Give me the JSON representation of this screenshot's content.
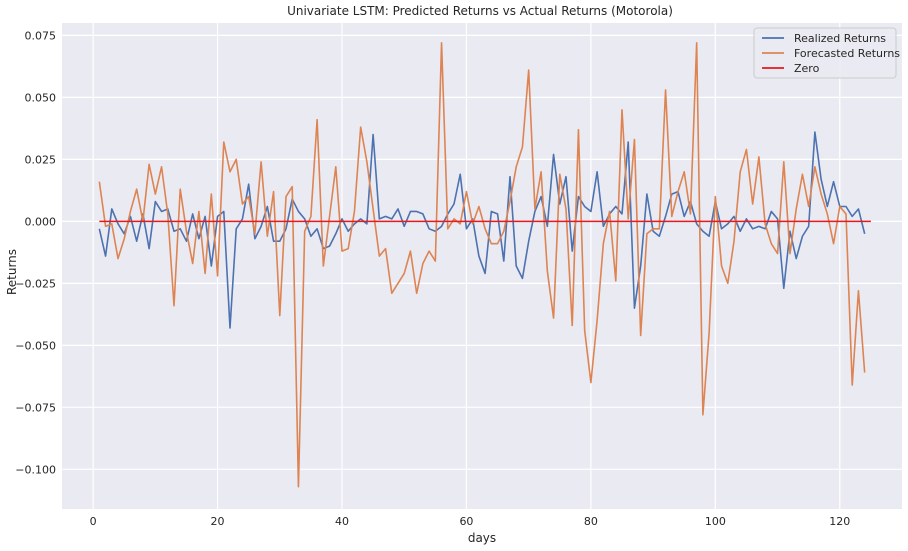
{
  "chart_data": {
    "type": "line",
    "title": "Univariate LSTM: Predicted Returns vs Actual Returns (Motorola)",
    "xlabel": "days",
    "ylabel": "Returns",
    "xlim": [
      -5,
      130
    ],
    "ylim": [
      -0.116,
      0.08
    ],
    "xticks": [
      0,
      20,
      40,
      60,
      80,
      100,
      120
    ],
    "yticks": [
      -0.1,
      -0.075,
      -0.05,
      -0.025,
      0.0,
      0.025,
      0.05,
      0.075
    ],
    "ytick_labels": [
      "−0.100",
      "−0.075",
      "−0.050",
      "−0.025",
      "0.000",
      "0.025",
      "0.050",
      "0.075"
    ],
    "xtick_labels": [
      "0",
      "20",
      "40",
      "60",
      "80",
      "100",
      "120"
    ],
    "grid": true,
    "legend_position": "top-right",
    "background_color": "#eaeaf2",
    "series": [
      {
        "name": "Realized Returns",
        "color": "#4c72b0",
        "x": [
          1,
          2,
          3,
          4,
          5,
          6,
          7,
          8,
          9,
          10,
          11,
          12,
          13,
          14,
          15,
          16,
          17,
          18,
          19,
          20,
          21,
          22,
          23,
          24,
          25,
          26,
          27,
          28,
          29,
          30,
          31,
          32,
          33,
          34,
          35,
          36,
          37,
          38,
          39,
          40,
          41,
          42,
          43,
          44,
          45,
          46,
          47,
          48,
          49,
          50,
          51,
          52,
          53,
          54,
          55,
          56,
          57,
          58,
          59,
          60,
          61,
          62,
          63,
          64,
          65,
          66,
          67,
          68,
          69,
          70,
          71,
          72,
          73,
          74,
          75,
          76,
          77,
          78,
          79,
          80,
          81,
          82,
          83,
          84,
          85,
          86,
          87,
          88,
          89,
          90,
          91,
          92,
          93,
          94,
          95,
          96,
          97,
          98,
          99,
          100,
          101,
          102,
          103,
          104,
          105,
          106,
          107,
          108,
          109,
          110,
          111,
          112,
          113,
          114,
          115,
          116,
          117,
          118,
          119,
          120,
          121,
          122,
          123,
          124
        ],
        "values": [
          -0.003,
          -0.014,
          0.005,
          -0.001,
          -0.005,
          0.002,
          -0.008,
          0.003,
          -0.011,
          0.008,
          0.004,
          0.005,
          -0.004,
          -0.003,
          -0.008,
          0.003,
          -0.007,
          0.002,
          -0.018,
          0.002,
          0.004,
          -0.043,
          -0.003,
          0.001,
          0.015,
          -0.007,
          -0.002,
          0.006,
          -0.008,
          -0.008,
          -0.003,
          0.009,
          0.004,
          0.001,
          -0.006,
          -0.003,
          -0.011,
          -0.01,
          -0.005,
          0.001,
          -0.004,
          -0.001,
          0.001,
          -0.001,
          0.035,
          0.001,
          0.002,
          0.001,
          0.005,
          -0.002,
          0.004,
          0.004,
          0.003,
          -0.003,
          -0.004,
          -0.002,
          0.003,
          0.007,
          0.019,
          -0.003,
          0.001,
          -0.014,
          -0.021,
          0.004,
          0.003,
          -0.016,
          0.018,
          -0.018,
          -0.023,
          -0.008,
          0.004,
          0.01,
          -0.002,
          0.027,
          0.007,
          0.018,
          -0.012,
          0.01,
          0.006,
          0.004,
          0.02,
          -0.002,
          0.003,
          0.006,
          0.003,
          0.032,
          -0.035,
          -0.018,
          0.011,
          -0.004,
          -0.006,
          0.002,
          0.011,
          0.012,
          0.002,
          0.008,
          -0.001,
          -0.004,
          -0.006,
          0.008,
          -0.003,
          -0.001,
          0.002,
          -0.004,
          0.001,
          -0.003,
          -0.002,
          -0.003,
          0.004,
          0.001,
          -0.027,
          -0.004,
          -0.015,
          -0.006,
          -0.002,
          0.036,
          0.017,
          0.006,
          0.016,
          0.006,
          0.006,
          0.002,
          0.005,
          -0.005
        ]
      },
      {
        "name": "Forecasted Returns",
        "color": "#dd8452",
        "x": [
          1,
          2,
          3,
          4,
          5,
          6,
          7,
          8,
          9,
          10,
          11,
          12,
          13,
          14,
          15,
          16,
          17,
          18,
          19,
          20,
          21,
          22,
          23,
          24,
          25,
          26,
          27,
          28,
          29,
          30,
          31,
          32,
          33,
          34,
          35,
          36,
          37,
          38,
          39,
          40,
          41,
          42,
          43,
          44,
          45,
          46,
          47,
          48,
          49,
          50,
          51,
          52,
          53,
          54,
          55,
          56,
          57,
          58,
          59,
          60,
          61,
          62,
          63,
          64,
          65,
          66,
          67,
          68,
          69,
          70,
          71,
          72,
          73,
          74,
          75,
          76,
          77,
          78,
          79,
          80,
          81,
          82,
          83,
          84,
          85,
          86,
          87,
          88,
          89,
          90,
          91,
          92,
          93,
          94,
          95,
          96,
          97,
          98,
          99,
          100,
          101,
          102,
          103,
          104,
          105,
          106,
          107,
          108,
          109,
          110,
          111,
          112,
          113,
          114,
          115,
          116,
          117,
          118,
          119,
          120,
          121,
          122,
          123,
          124
        ],
        "values": [
          0.016,
          -0.002,
          -0.001,
          -0.015,
          -0.007,
          0.004,
          0.013,
          0.0,
          0.023,
          0.011,
          0.022,
          0.003,
          -0.034,
          0.013,
          -0.004,
          -0.017,
          0.004,
          -0.021,
          0.011,
          -0.022,
          0.032,
          0.02,
          0.025,
          0.007,
          0.01,
          -0.005,
          0.024,
          -0.006,
          0.012,
          -0.038,
          0.01,
          0.014,
          -0.107,
          -0.004,
          0.002,
          0.041,
          -0.018,
          0.002,
          0.022,
          -0.012,
          -0.011,
          0.004,
          0.038,
          0.024,
          0.005,
          -0.014,
          -0.011,
          -0.029,
          -0.025,
          -0.021,
          -0.012,
          -0.029,
          -0.017,
          -0.012,
          -0.016,
          0.072,
          -0.003,
          0.001,
          -0.001,
          0.012,
          -0.001,
          0.006,
          -0.003,
          -0.009,
          -0.009,
          -0.004,
          0.008,
          0.022,
          0.03,
          0.061,
          0.005,
          0.02,
          -0.02,
          -0.039,
          0.019,
          0.005,
          -0.042,
          0.037,
          -0.044,
          -0.065,
          -0.04,
          -0.009,
          0.004,
          -0.024,
          0.045,
          0.001,
          0.033,
          -0.046,
          -0.005,
          -0.003,
          -0.003,
          0.053,
          0.002,
          0.012,
          0.02,
          0.003,
          0.072,
          -0.078,
          -0.045,
          0.01,
          -0.018,
          -0.025,
          -0.008,
          0.02,
          0.029,
          0.007,
          0.026,
          -0.001,
          -0.009,
          -0.013,
          0.024,
          -0.013,
          0.005,
          0.019,
          0.006,
          0.022,
          0.011,
          0.003,
          -0.009,
          0.006,
          0.003,
          -0.066,
          -0.028,
          -0.061
        ]
      },
      {
        "name": "Zero",
        "color": "#e41a1c",
        "x": [
          1,
          125
        ],
        "values": [
          0.0,
          0.0
        ]
      }
    ]
  }
}
